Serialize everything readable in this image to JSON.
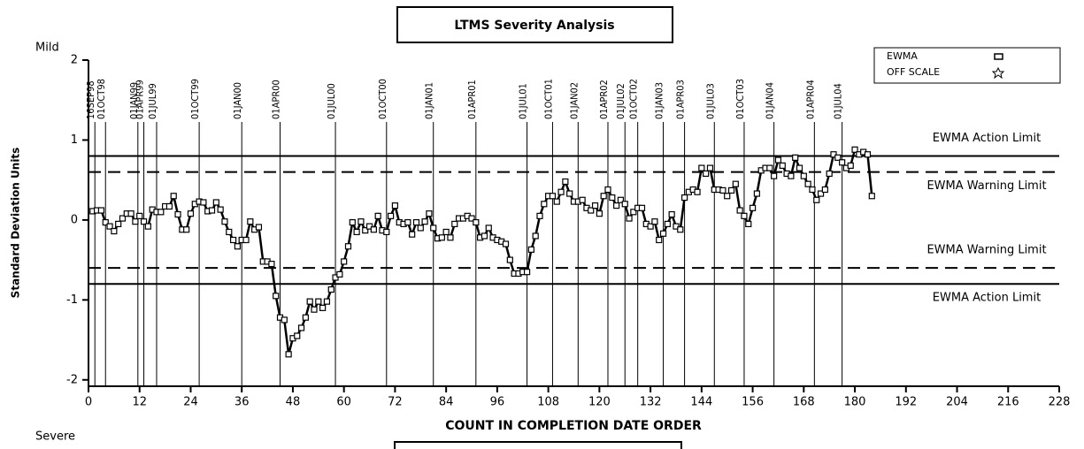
{
  "chart_data": {
    "type": "line",
    "title": "LTMS Severity Analysis",
    "xlabel": "COUNT IN COMPLETION DATE ORDER",
    "ylabel": "Standard Deviation Units",
    "top_note": "Mild",
    "bottom_note": "Severe",
    "xlim": [
      0,
      228
    ],
    "xticks": [
      0,
      12,
      24,
      36,
      48,
      60,
      72,
      84,
      96,
      108,
      120,
      132,
      144,
      156,
      168,
      180,
      192,
      204,
      216,
      228
    ],
    "ylim": [
      -2.08,
      2
    ],
    "yticks": [
      -2,
      -1,
      0,
      1,
      2
    ],
    "legend": {
      "position": "top-right",
      "entries": [
        "EWMA",
        "OFF SCALE"
      ]
    },
    "reference_lines": [
      {
        "value": 0.8,
        "label": "EWMA Action Limit",
        "style": "solid"
      },
      {
        "value": 0.6,
        "label": "EWMA Warning Limit",
        "style": "dashed"
      },
      {
        "value": -0.6,
        "label": "EWMA Warning Limit",
        "style": "dashed"
      },
      {
        "value": -0.8,
        "label": "EWMA Action Limit",
        "style": "solid"
      }
    ],
    "date_lines": [
      {
        "label": "16SEP98",
        "x": 1.5
      },
      {
        "label": "01OCT98",
        "x": 4
      },
      {
        "label": "01JAN99",
        "x": 11.6
      },
      {
        "label": "01APR99",
        "x": 13
      },
      {
        "label": "01JUL99",
        "x": 16
      },
      {
        "label": "01OCT99",
        "x": 26
      },
      {
        "label": "01JAN00",
        "x": 36
      },
      {
        "label": "01APR00",
        "x": 45
      },
      {
        "label": "01JUL00",
        "x": 58
      },
      {
        "label": "01OCT00",
        "x": 70
      },
      {
        "label": "01JAN01",
        "x": 81
      },
      {
        "label": "01APR01",
        "x": 91
      },
      {
        "label": "01JUL01",
        "x": 103
      },
      {
        "label": "01OCT01",
        "x": 109
      },
      {
        "label": "01JAN02",
        "x": 115
      },
      {
        "label": "01APR02",
        "x": 122
      },
      {
        "label": "01JUL02",
        "x": 126
      },
      {
        "label": "01OCT02",
        "x": 129
      },
      {
        "label": "01JAN03",
        "x": 135
      },
      {
        "label": "01APR03",
        "x": 140
      },
      {
        "label": "01JUL03",
        "x": 147
      },
      {
        "label": "01OCT03",
        "x": 154
      },
      {
        "label": "01JAN04",
        "x": 161
      },
      {
        "label": "01APR04",
        "x": 170.5
      },
      {
        "label": "01JUL04",
        "x": 177
      }
    ],
    "x": [
      1,
      2,
      3,
      4,
      5,
      6,
      7,
      8,
      9,
      10,
      11,
      12,
      13,
      14,
      15,
      16,
      17,
      18,
      19,
      20,
      21,
      22,
      23,
      24,
      25,
      26,
      27,
      28,
      29,
      30,
      31,
      32,
      33,
      34,
      35,
      36,
      37,
      38,
      39,
      40,
      41,
      42,
      43,
      44,
      45,
      46,
      47,
      48,
      49,
      50,
      51,
      52,
      53,
      54,
      55,
      56,
      57,
      58,
      59,
      60,
      61,
      62,
      63,
      64,
      65,
      66,
      67,
      68,
      69,
      70,
      71,
      72,
      73,
      74,
      75,
      76,
      77,
      78,
      79,
      80,
      81,
      82,
      83,
      84,
      85,
      86,
      87,
      88,
      89,
      90,
      91,
      92,
      93,
      94,
      95,
      96,
      97,
      98,
      99,
      100,
      101,
      102,
      103,
      104,
      105,
      106,
      107,
      108,
      109,
      110,
      111,
      112,
      113,
      114,
      115,
      116,
      117,
      118,
      119,
      120,
      121,
      122,
      123,
      124,
      125,
      126,
      127,
      128,
      129,
      130,
      131,
      132,
      133,
      134,
      135,
      136,
      137,
      138,
      139,
      140,
      141,
      142,
      143,
      144,
      145,
      146,
      147,
      148,
      149,
      150,
      151,
      152,
      153,
      154,
      155,
      156,
      157,
      158,
      159,
      160,
      161,
      162,
      163,
      164,
      165,
      166,
      167,
      168,
      169,
      170,
      171,
      172,
      173,
      174,
      175,
      176,
      177,
      178,
      179,
      180,
      181,
      182,
      183,
      184
    ],
    "series": [
      {
        "name": "EWMA",
        "color": "#000000",
        "values": [
          0.11,
          0.12,
          0.12,
          -0.03,
          -0.08,
          -0.14,
          -0.05,
          0.02,
          0.08,
          0.08,
          -0.02,
          0.05,
          -0.02,
          -0.08,
          0.13,
          0.1,
          0.1,
          0.17,
          0.17,
          0.3,
          0.07,
          -0.12,
          -0.12,
          0.08,
          0.2,
          0.23,
          0.22,
          0.11,
          0.12,
          0.22,
          0.13,
          -0.02,
          -0.15,
          -0.25,
          -0.33,
          -0.25,
          -0.25,
          -0.02,
          -0.12,
          -0.09,
          -0.52,
          -0.52,
          -0.55,
          -0.95,
          -1.22,
          -1.25,
          -1.68,
          -1.48,
          -1.45,
          -1.35,
          -1.22,
          -1.02,
          -1.12,
          -1.02,
          -1.1,
          -1.02,
          -0.87,
          -0.72,
          -0.68,
          -0.52,
          -0.33,
          -0.03,
          -0.15,
          -0.02,
          -0.13,
          -0.08,
          -0.12,
          0.05,
          -0.13,
          -0.15,
          0.05,
          0.18,
          -0.03,
          -0.05,
          -0.03,
          -0.18,
          -0.03,
          -0.1,
          -0.02,
          0.08,
          -0.1,
          -0.23,
          -0.22,
          -0.15,
          -0.22,
          -0.05,
          0.02,
          0.02,
          0.05,
          0.02,
          -0.03,
          -0.22,
          -0.2,
          -0.1,
          -0.22,
          -0.25,
          -0.27,
          -0.3,
          -0.5,
          -0.67,
          -0.67,
          -0.65,
          -0.65,
          -0.37,
          -0.2,
          0.05,
          0.2,
          0.3,
          0.3,
          0.23,
          0.35,
          0.48,
          0.33,
          0.23,
          0.23,
          0.25,
          0.15,
          0.12,
          0.18,
          0.08,
          0.3,
          0.38,
          0.28,
          0.18,
          0.25,
          0.2,
          0.02,
          0.1,
          0.15,
          0.15,
          -0.05,
          -0.08,
          -0.02,
          -0.25,
          -0.17,
          -0.05,
          0.07,
          -0.08,
          -0.12,
          0.28,
          0.35,
          0.38,
          0.35,
          0.65,
          0.58,
          0.65,
          0.38,
          0.38,
          0.37,
          0.3,
          0.37,
          0.45,
          0.12,
          0.05,
          -0.05,
          0.15,
          0.33,
          0.62,
          0.65,
          0.65,
          0.55,
          0.75,
          0.68,
          0.58,
          0.55,
          0.78,
          0.65,
          0.55,
          0.45,
          0.38,
          0.25,
          0.33,
          0.38,
          0.58,
          0.82,
          0.78,
          0.72,
          0.65,
          0.68,
          0.88,
          0.82,
          0.85,
          0.82,
          0.3
        ]
      }
    ]
  }
}
